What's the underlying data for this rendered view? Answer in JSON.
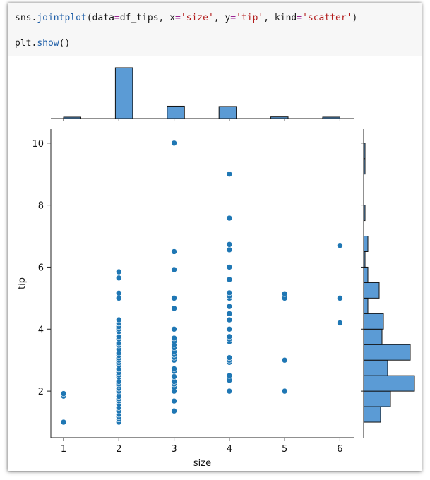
{
  "code": {
    "line1": {
      "obj": "sns.",
      "fn": "jointplot",
      "open": "(",
      "arg1_name": "data",
      "eq": "=",
      "arg1_val": "df_tips",
      "sep": ", ",
      "arg2_name": "x",
      "arg2_val": "'size'",
      "arg3_name": "y",
      "arg3_val": "'tip'",
      "arg4_name": "kind",
      "arg4_val": "'scatter'",
      "close": ")"
    },
    "line2": {
      "obj": "plt.",
      "fn": "show",
      "call": "()"
    }
  },
  "chart_data": {
    "type": "scatter",
    "xlabel": "size",
    "ylabel": "tip",
    "xlim": [
      0.77,
      6.25
    ],
    "ylim": [
      0.5,
      10.45
    ],
    "xticks": [
      1,
      2,
      3,
      4,
      5,
      6
    ],
    "yticks": [
      2,
      4,
      6,
      8,
      10
    ],
    "point_color": "#1f77b4",
    "hist_color": "#5b9bd5",
    "points": {
      "1": [
        1.0,
        1.84,
        1.92
      ],
      "2": [
        1.0,
        1.1,
        1.17,
        1.25,
        1.36,
        1.47,
        1.58,
        1.68,
        1.75,
        1.83,
        1.96,
        2.0,
        2.09,
        2.18,
        2.23,
        2.31,
        2.45,
        2.52,
        2.6,
        2.71,
        2.83,
        2.92,
        3.0,
        3.07,
        3.15,
        3.23,
        3.35,
        3.48,
        3.55,
        3.68,
        3.76,
        3.92,
        4.0,
        4.08,
        4.19,
        4.3,
        5.0,
        5.16,
        5.65,
        5.85
      ],
      "3": [
        1.36,
        1.68,
        2.0,
        2.12,
        2.23,
        2.31,
        2.47,
        2.64,
        2.72,
        3.0,
        3.09,
        3.18,
        3.27,
        3.4,
        3.5,
        3.6,
        3.71,
        4.0,
        4.67,
        5.0,
        5.92,
        6.5,
        10.0
      ],
      "4": [
        2.0,
        2.35,
        2.5,
        2.93,
        3.0,
        3.08,
        3.6,
        3.68,
        3.76,
        4.0,
        4.3,
        4.5,
        4.73,
        5.0,
        5.07,
        5.17,
        5.6,
        6.0,
        6.56,
        6.73,
        7.58,
        9.0
      ],
      "5": [
        2.0,
        3.0,
        5.0,
        5.14
      ],
      "6": [
        4.2,
        5.0,
        6.7
      ]
    },
    "marginal_x": {
      "bin_width": 0.3125,
      "bins": [
        {
          "center": 1.15625,
          "count": 4
        },
        {
          "center": 2.09375,
          "count": 156
        },
        {
          "center": 3.03125,
          "count": 38
        },
        {
          "center": 3.96875,
          "count": 37
        },
        {
          "center": 4.90625,
          "count": 5
        },
        {
          "center": 5.84375,
          "count": 4
        }
      ]
    },
    "marginal_y": {
      "bins": [
        {
          "from": 1.0,
          "to": 1.5,
          "count": 12
        },
        {
          "from": 1.5,
          "to": 2.0,
          "count": 19
        },
        {
          "from": 2.0,
          "to": 2.5,
          "count": 36
        },
        {
          "from": 2.5,
          "to": 3.0,
          "count": 17
        },
        {
          "from": 3.0,
          "to": 3.5,
          "count": 33
        },
        {
          "from": 3.5,
          "to": 4.0,
          "count": 13
        },
        {
          "from": 4.0,
          "to": 4.5,
          "count": 14
        },
        {
          "from": 4.5,
          "to": 5.0,
          "count": 3
        },
        {
          "from": 5.0,
          "to": 5.5,
          "count": 11
        },
        {
          "from": 5.5,
          "to": 6.0,
          "count": 3
        },
        {
          "from": 6.0,
          "to": 6.5,
          "count": 1
        },
        {
          "from": 6.5,
          "to": 7.0,
          "count": 3
        },
        {
          "from": 7.5,
          "to": 8.0,
          "count": 1
        },
        {
          "from": 9.0,
          "to": 9.5,
          "count": 1
        },
        {
          "from": 9.5,
          "to": 10.0,
          "count": 1
        }
      ]
    }
  }
}
